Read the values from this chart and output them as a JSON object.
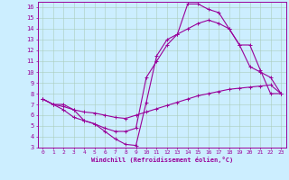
{
  "xlabel": "Windchill (Refroidissement éolien,°C)",
  "bg_color": "#cceeff",
  "line_color": "#990099",
  "grid_color": "#aaccbb",
  "xlim": [
    -0.5,
    23.5
  ],
  "ylim": [
    3,
    16.5
  ],
  "xticks": [
    0,
    1,
    2,
    3,
    4,
    5,
    6,
    7,
    8,
    9,
    10,
    11,
    12,
    13,
    14,
    15,
    16,
    17,
    18,
    19,
    20,
    21,
    22,
    23
  ],
  "yticks": [
    3,
    4,
    5,
    6,
    7,
    8,
    9,
    10,
    11,
    12,
    13,
    14,
    15,
    16
  ],
  "line1_x": [
    0,
    1,
    2,
    3,
    4,
    5,
    6,
    7,
    8,
    9,
    10,
    11,
    12,
    13,
    14,
    15,
    16,
    17,
    18,
    19,
    20,
    21,
    22,
    23
  ],
  "line1_y": [
    7.5,
    7.0,
    6.8,
    6.5,
    6.3,
    6.2,
    6.0,
    5.8,
    5.7,
    6.0,
    6.3,
    6.6,
    6.9,
    7.2,
    7.5,
    7.8,
    8.0,
    8.2,
    8.4,
    8.5,
    8.6,
    8.7,
    8.8,
    8.0
  ],
  "line2_x": [
    0,
    1,
    2,
    3,
    4,
    5,
    6,
    7,
    8,
    9,
    10,
    11,
    12,
    13,
    14,
    15,
    16,
    17,
    18,
    19,
    20,
    21,
    22,
    23
  ],
  "line2_y": [
    7.5,
    7.0,
    6.5,
    5.8,
    5.5,
    5.2,
    4.5,
    3.8,
    3.3,
    3.2,
    7.2,
    11.5,
    13.0,
    13.5,
    16.3,
    16.3,
    15.8,
    15.5,
    14.0,
    12.5,
    10.5,
    10.0,
    9.5,
    8.0
  ],
  "line3_x": [
    0,
    1,
    2,
    3,
    4,
    5,
    6,
    7,
    8,
    9,
    10,
    11,
    12,
    13,
    14,
    15,
    16,
    17,
    18,
    19,
    20,
    21,
    22,
    23
  ],
  "line3_y": [
    7.5,
    7.0,
    7.0,
    6.5,
    5.5,
    5.2,
    4.8,
    4.5,
    4.5,
    4.8,
    9.5,
    11.0,
    12.5,
    13.5,
    14.0,
    14.5,
    14.8,
    14.5,
    14.0,
    12.5,
    12.5,
    10.2,
    8.0,
    8.0
  ]
}
